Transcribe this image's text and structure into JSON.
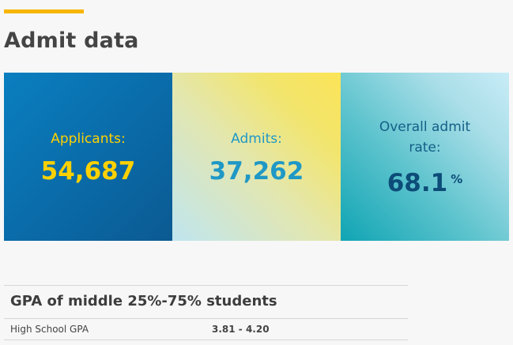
{
  "page": {
    "title": "Admit data",
    "accent_color": "#f7b500"
  },
  "stats": {
    "applicants": {
      "label": "Applicants:",
      "value": "54,687"
    },
    "admits": {
      "label": "Admits:",
      "value": "37,262"
    },
    "admit_rate": {
      "label": "Overall admit rate:",
      "value": "68.1",
      "unit": "%"
    }
  },
  "gpa": {
    "title": "GPA of middle 25%-75% students",
    "rows": [
      {
        "label": "High School GPA",
        "value": "3.81 - 4.20"
      }
    ]
  }
}
